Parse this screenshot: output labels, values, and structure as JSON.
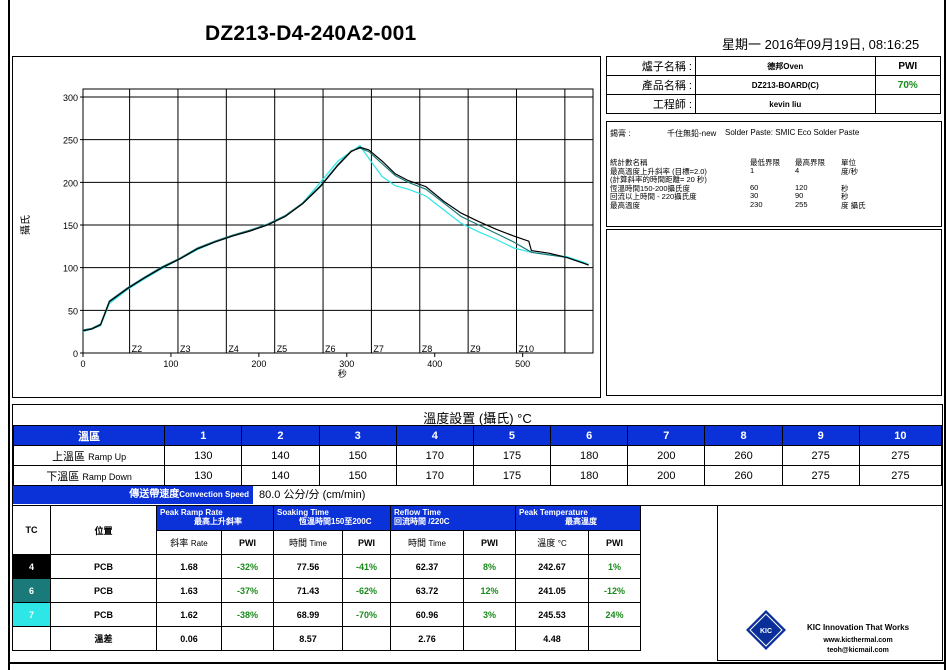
{
  "title": "DZ213-D4-240A2-001",
  "datetime": "星期一 2016年09月19日, 08:16:25",
  "info": {
    "oven_label": "爐子名稱 :",
    "oven_value": "德邦Oven",
    "product_label": "產品名稱 :",
    "product_value": "DZ213-BOARD(C)",
    "engineer_label": "工程師 :",
    "engineer_value": "kevin liu",
    "pwi_label": "PWI",
    "pwi_value": "70%"
  },
  "specs": {
    "solder_label": "錫膏 :",
    "solder_name": "千住無鉛-new",
    "solder_paste": "Solder Paste: SMIC Eco Solder Paste",
    "stat_name": "統計數名稱",
    "low_limit": "最低界限",
    "high_limit": "最高界限",
    "unit": "單位",
    "rows": [
      {
        "name": "最高溫度上升斜率 (目標=2.0)",
        "low": "1",
        "high": "4",
        "unit": "度/秒"
      },
      {
        "name": "(計算斜率的時間距離= 20 秒)",
        "low": "",
        "high": "",
        "unit": ""
      },
      {
        "name": "恆溫時間150-200攝氏度",
        "low": "60",
        "high": "120",
        "unit": "秒"
      },
      {
        "name": "回流以上時間 - 220攝氏度",
        "low": "30",
        "high": "90",
        "unit": "秒"
      },
      {
        "name": "最高溫度",
        "low": "230",
        "high": "255",
        "unit": "度 攝氏"
      }
    ]
  },
  "settings": {
    "title": "溫度設置 (攝氏) °C",
    "zone_label": "溫區",
    "zones": [
      "1",
      "2",
      "3",
      "4",
      "5",
      "6",
      "7",
      "8",
      "9",
      "10"
    ],
    "upper_label": "上溫區",
    "upper_sub": "Ramp Up",
    "upper": [
      "130",
      "140",
      "150",
      "170",
      "175",
      "180",
      "200",
      "260",
      "275",
      "275"
    ],
    "lower_label": "下溫區",
    "lower_sub": "Ramp Down",
    "lower": [
      "130",
      "140",
      "150",
      "170",
      "175",
      "180",
      "200",
      "260",
      "275",
      "275"
    ],
    "conveyor_label": "傳送帶速度",
    "conveyor_sub": "Convection Speed",
    "conveyor_value": "80.0 公分/分",
    "conveyor_unit": "(cm/min)"
  },
  "results": {
    "tc_label": "TC",
    "pos_label": "位置",
    "groups": [
      {
        "en": "Peak Ramp Rate",
        "zh": "最高上升斜率",
        "sub1": "斜率",
        "sub1_unit": "Rate",
        "sub2": "PWI"
      },
      {
        "en": "Soaking Time",
        "zh": "恆溫時間150至200C",
        "sub1": "時間",
        "sub1_unit": "Time",
        "sub2": "PWI"
      },
      {
        "en": "Reflow Time",
        "zh": "回流時間 /220C",
        "sub1": "時間",
        "sub1_unit": "Time",
        "sub2": "PWI"
      },
      {
        "en": "Peak Temperature",
        "zh": "最高溫度",
        "sub1": "溫度",
        "sub1_unit": "°C",
        "sub2": "PWI"
      }
    ],
    "rows": [
      {
        "tc": "4",
        "color": "#000000",
        "pos": "PCB",
        "v": [
          "1.68",
          "-32%",
          "77.56",
          "-41%",
          "62.37",
          "8%",
          "242.67",
          "1%"
        ]
      },
      {
        "tc": "6",
        "color": "#1a7a7a",
        "pos": "PCB",
        "v": [
          "1.63",
          "-37%",
          "71.43",
          "-62%",
          "63.72",
          "12%",
          "241.05",
          "-12%"
        ]
      },
      {
        "tc": "7",
        "color": "#2ee6e6",
        "pos": "PCB",
        "v": [
          "1.62",
          "-38%",
          "68.99",
          "-70%",
          "60.96",
          "3%",
          "245.53",
          "24%"
        ]
      }
    ],
    "diff_label": "溫差",
    "diff": [
      "0.06",
      "8.57",
      "2.76",
      "4.48"
    ]
  },
  "logo": {
    "badge": "KIC",
    "tagline": "KIC Innovation That Works",
    "site": "www.kicthermal.com",
    "email": "teoh@kicmail.com"
  },
  "chart_data": {
    "type": "line",
    "ylabel": "攝氏",
    "xlabel": "秒",
    "xlim": [
      0,
      580
    ],
    "ylim": [
      0,
      300
    ],
    "x_ticks": [
      0,
      100,
      200,
      300,
      400,
      500
    ],
    "y_ticks": [
      0,
      50,
      100,
      150,
      200,
      250,
      300
    ],
    "zone_labels": [
      {
        "label": "Z2",
        "x": 53
      },
      {
        "label": "Z3",
        "x": 108
      },
      {
        "label": "Z4",
        "x": 163
      },
      {
        "label": "Z5",
        "x": 218
      },
      {
        "label": "Z6",
        "x": 273
      },
      {
        "label": "Z7",
        "x": 328
      },
      {
        "label": "Z8",
        "x": 383
      },
      {
        "label": "Z9",
        "x": 438
      },
      {
        "label": "Z10",
        "x": 493
      }
    ],
    "series": [
      {
        "color": "#000000",
        "points": [
          [
            0,
            26
          ],
          [
            10,
            28
          ],
          [
            20,
            33
          ],
          [
            30,
            60
          ],
          [
            50,
            75
          ],
          [
            70,
            88
          ],
          [
            90,
            100
          ],
          [
            110,
            110
          ],
          [
            130,
            122
          ],
          [
            150,
            130
          ],
          [
            170,
            137
          ],
          [
            190,
            143
          ],
          [
            210,
            150
          ],
          [
            230,
            160
          ],
          [
            250,
            175
          ],
          [
            270,
            195
          ],
          [
            290,
            220
          ],
          [
            305,
            236
          ],
          [
            315,
            241
          ],
          [
            325,
            238
          ],
          [
            340,
            225
          ],
          [
            355,
            210
          ],
          [
            370,
            202
          ],
          [
            390,
            195
          ],
          [
            410,
            178
          ],
          [
            430,
            164
          ],
          [
            450,
            154
          ],
          [
            470,
            145
          ],
          [
            490,
            137
          ],
          [
            507,
            131
          ],
          [
            510,
            120
          ],
          [
            530,
            117
          ],
          [
            550,
            112
          ],
          [
            570,
            105
          ],
          [
            575,
            103
          ]
        ]
      },
      {
        "color": "#1a7a7a",
        "points": [
          [
            0,
            27
          ],
          [
            10,
            29
          ],
          [
            20,
            34
          ],
          [
            30,
            61
          ],
          [
            50,
            76
          ],
          [
            70,
            89
          ],
          [
            90,
            101
          ],
          [
            110,
            111
          ],
          [
            130,
            123
          ],
          [
            150,
            131
          ],
          [
            170,
            138
          ],
          [
            190,
            144
          ],
          [
            210,
            151
          ],
          [
            230,
            161
          ],
          [
            250,
            176
          ],
          [
            270,
            196
          ],
          [
            290,
            221
          ],
          [
            305,
            237
          ],
          [
            315,
            240
          ],
          [
            325,
            236
          ],
          [
            340,
            222
          ],
          [
            355,
            208
          ],
          [
            370,
            200
          ],
          [
            390,
            192
          ],
          [
            410,
            176
          ],
          [
            430,
            160
          ],
          [
            450,
            150
          ],
          [
            470,
            140
          ],
          [
            490,
            130
          ],
          [
            510,
            118
          ],
          [
            530,
            115
          ],
          [
            550,
            112
          ],
          [
            570,
            105
          ],
          [
            575,
            103
          ]
        ]
      },
      {
        "color": "#2ee6e6",
        "points": [
          [
            0,
            25
          ],
          [
            10,
            28
          ],
          [
            20,
            32
          ],
          [
            30,
            58
          ],
          [
            50,
            74
          ],
          [
            70,
            87
          ],
          [
            90,
            99
          ],
          [
            110,
            110
          ],
          [
            130,
            121
          ],
          [
            150,
            130
          ],
          [
            170,
            137
          ],
          [
            190,
            143
          ],
          [
            210,
            150
          ],
          [
            230,
            160
          ],
          [
            250,
            176
          ],
          [
            270,
            200
          ],
          [
            290,
            225
          ],
          [
            305,
            236
          ],
          [
            315,
            243
          ],
          [
            325,
            228
          ],
          [
            340,
            207
          ],
          [
            355,
            196
          ],
          [
            370,
            192
          ],
          [
            390,
            184
          ],
          [
            410,
            168
          ],
          [
            430,
            152
          ],
          [
            450,
            142
          ],
          [
            470,
            133
          ],
          [
            490,
            123
          ],
          [
            510,
            118
          ],
          [
            530,
            115
          ],
          [
            550,
            113
          ],
          [
            570,
            106
          ],
          [
            575,
            104
          ]
        ]
      }
    ]
  }
}
